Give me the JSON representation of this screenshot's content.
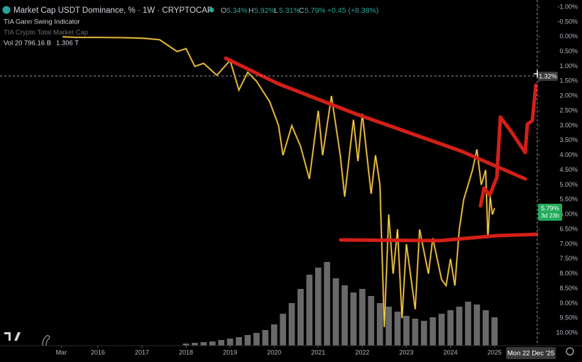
{
  "header": {
    "title": "Market Cap USDT Dominance, % · 1W · CRYPTOCAP",
    "open_label": "O",
    "open": "5.34%",
    "high_label": "H",
    "high": "5.92%",
    "low_label": "L",
    "low": "5.31%",
    "close_label": "C",
    "close": "5.79%",
    "change": "+0.45 (+8.38%)",
    "indicator": "TIA Gann Swing Indicator",
    "overlay": "TIA Crypto Total Market Cap",
    "volume_label": "Vol 20",
    "volume_value": "796.16 B",
    "volume_ma": "1.306 T"
  },
  "price_labels": {
    "crosshair": "1.32%",
    "last": "5.79%",
    "countdown": "3d 23h"
  },
  "crosshair_date": "Mon 22 Dec '25",
  "chart_data": [
    {
      "type": "line",
      "color": "#f2e24a",
      "x": [
        2015.2,
        2015.5,
        2016.0,
        2016.5,
        2017.0,
        2017.4,
        2017.6,
        2017.8,
        2018.0,
        2018.2,
        2018.4,
        2018.7,
        2019.0,
        2019.2,
        2019.4,
        2019.6,
        2019.9,
        2020.1,
        2020.2,
        2020.4,
        2020.6,
        2020.8,
        2021.0,
        2021.1,
        2021.3,
        2021.5,
        2021.6,
        2021.8,
        2021.9,
        2022.0,
        2022.2,
        2022.3,
        2022.4,
        2022.5,
        2022.6,
        2022.7,
        2022.8,
        2022.9,
        2023.0,
        2023.2,
        2023.3,
        2023.5,
        2023.6,
        2023.8,
        2023.9,
        2024.0,
        2024.1,
        2024.2,
        2024.3,
        2024.5,
        2024.6,
        2024.7,
        2024.8,
        2024.85,
        2024.9,
        2024.95,
        2025.0
      ],
      "values": [
        0.0,
        0.02,
        0.02,
        0.03,
        0.05,
        0.1,
        0.3,
        0.5,
        0.4,
        1.0,
        0.9,
        1.3,
        0.8,
        1.8,
        1.2,
        1.5,
        2.2,
        3.0,
        4.0,
        3.0,
        3.7,
        4.8,
        2.5,
        4.0,
        2.0,
        4.0,
        5.4,
        2.8,
        4.2,
        2.6,
        5.3,
        4.0,
        5.0,
        9.8,
        6.0,
        8.0,
        6.5,
        9.5,
        7.0,
        9.2,
        6.5,
        8.0,
        6.8,
        8.2,
        8.4,
        7.5,
        8.4,
        6.5,
        5.5,
        4.5,
        3.8,
        5.0,
        4.5,
        6.8,
        5.4,
        6.0,
        5.79
      ],
      "xlim": [
        2013.78,
        2025.97
      ],
      "ylim": [
        10.38,
        -1.24
      ],
      "xticks": [
        {
          "value": 2015.17,
          "label": "Mar"
        },
        2016,
        2017,
        2018,
        2019,
        2020,
        2021,
        2022,
        2023,
        2024,
        2025
      ],
      "yticks": [
        {
          "value": -1,
          "label": "-1.00%"
        },
        {
          "value": -0.5,
          "label": "-0.50%"
        },
        {
          "value": 0,
          "label": "0.00%"
        },
        {
          "value": 0.5,
          "label": "0.50%"
        },
        {
          "value": 1,
          "label": "1.00%"
        },
        {
          "value": 1.5,
          "label": "1.50%"
        },
        {
          "value": 2,
          "label": "2.00%"
        },
        {
          "value": 2.5,
          "label": "2.50%"
        },
        {
          "value": 3,
          "label": "3.00%"
        },
        {
          "value": 3.5,
          "label": "3.50%"
        },
        {
          "value": 4,
          "label": "4.00%"
        },
        {
          "value": 4.5,
          "label": "4.50%"
        },
        {
          "value": 5,
          "label": "5.00%"
        },
        {
          "value": 5.5,
          "label": "5.50%"
        },
        {
          "value": 6,
          "label": "6.00%"
        },
        {
          "value": 6.5,
          "label": "6.50%"
        },
        {
          "value": 7,
          "label": "7.00%"
        },
        {
          "value": 7.5,
          "label": "7.50%"
        },
        {
          "value": 8,
          "label": "8.00%"
        },
        {
          "value": 8.5,
          "label": "8.50%"
        },
        {
          "value": 9,
          "label": "9.00%"
        },
        {
          "value": 9.5,
          "label": "9.50%"
        },
        {
          "value": 10,
          "label": "10.00%"
        }
      ]
    },
    {
      "type": "bar",
      "color": "#8c8c8c",
      "x": [
        2018.0,
        2018.2,
        2018.4,
        2018.6,
        2018.8,
        2019.0,
        2019.2,
        2019.4,
        2019.6,
        2019.8,
        2020.0,
        2020.2,
        2020.4,
        2020.6,
        2020.8,
        2021.0,
        2021.2,
        2021.4,
        2021.6,
        2021.8,
        2022.0,
        2022.2,
        2022.4,
        2022.6,
        2022.8,
        2023.0,
        2023.2,
        2023.4,
        2023.6,
        2023.8,
        2024.0,
        2024.2,
        2024.4,
        2024.6,
        2024.8,
        2025.0
      ],
      "values": [
        3,
        4,
        5,
        6,
        8,
        10,
        12,
        15,
        18,
        22,
        30,
        45,
        60,
        80,
        100,
        110,
        118,
        95,
        85,
        75,
        80,
        70,
        60,
        55,
        48,
        42,
        38,
        35,
        40,
        45,
        50,
        55,
        62,
        58,
        50,
        40
      ],
      "xlim": [
        2013.78,
        2025.97
      ],
      "ylim": [
        0,
        120
      ]
    }
  ]
}
